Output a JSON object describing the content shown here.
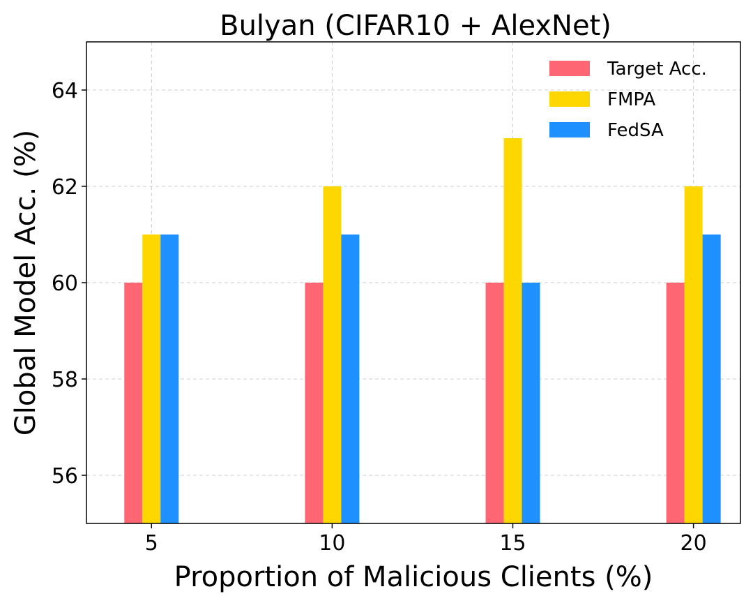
{
  "chart_data": {
    "type": "bar",
    "title": "Bulyan (CIFAR10 + AlexNet)",
    "xlabel": "Proportion of Malicious Clients (%)",
    "ylabel": "Global Model Acc. (%)",
    "categories": [
      "5",
      "10",
      "15",
      "20"
    ],
    "series": [
      {
        "name": "Target Acc.",
        "color": "#ff6673",
        "values": [
          60,
          60,
          60,
          60
        ]
      },
      {
        "name": "FMPA",
        "color": "#ffd700",
        "values": [
          61,
          62,
          63,
          62
        ]
      },
      {
        "name": "FedSA",
        "color": "#1e90ff",
        "values": [
          61,
          61,
          60,
          61
        ]
      }
    ],
    "ylim": [
      55,
      65
    ],
    "yticks": [
      56,
      58,
      60,
      62,
      64
    ],
    "grid": true,
    "legend_position": "top-right"
  }
}
